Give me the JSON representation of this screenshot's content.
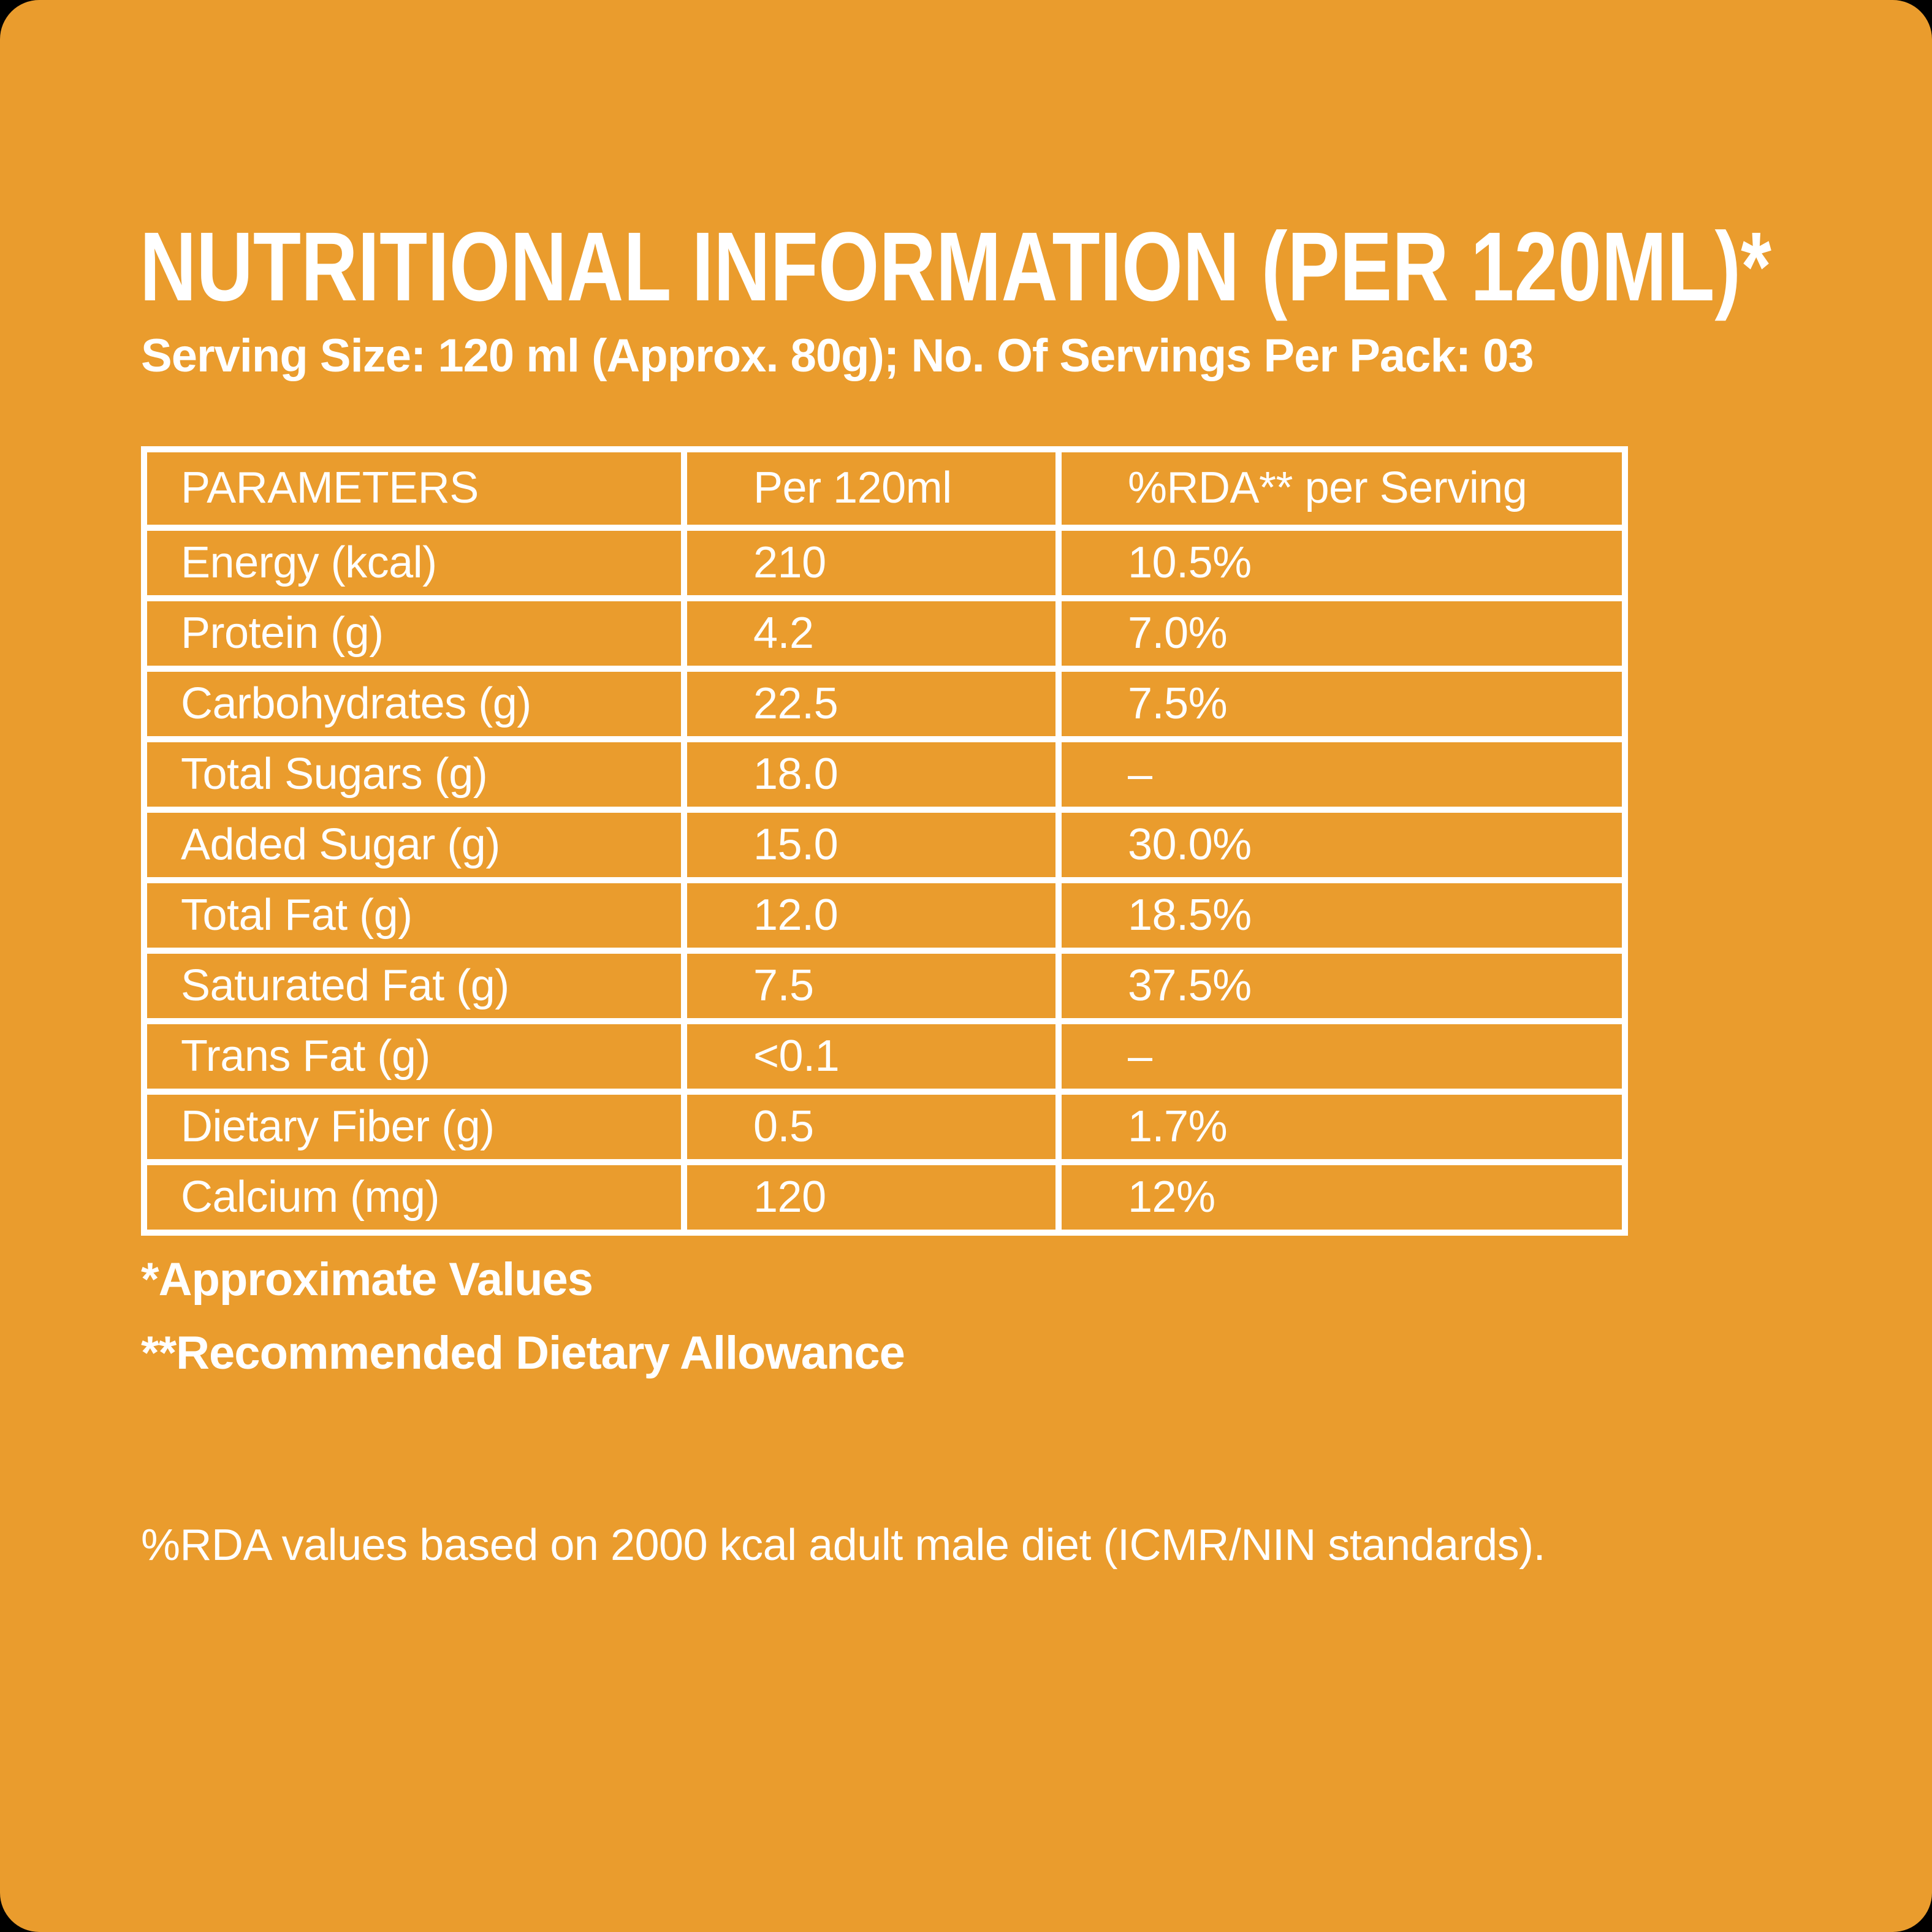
{
  "header": {
    "title": "NUTRITIONAL INFORMATION (PER 120ML)*",
    "serving_line": "Serving Size: 120 ml (Approx. 80g); No. Of Servings Per Pack: 03"
  },
  "table": {
    "headers": [
      "PARAMETERS",
      "Per 120ml",
      "%RDA** per Serving"
    ],
    "rows": [
      {
        "parameter": "Energy (kcal)",
        "per_120ml": "210",
        "rda_per_serving": "10.5%"
      },
      {
        "parameter": "Protein (g)",
        "per_120ml": "4.2",
        "rda_per_serving": "7.0%"
      },
      {
        "parameter": "Carbohydrates (g)",
        "per_120ml": "22.5",
        "rda_per_serving": "7.5%"
      },
      {
        "parameter": "Total Sugars (g)",
        "per_120ml": "18.0",
        "rda_per_serving": "–"
      },
      {
        "parameter": "Added Sugar (g)",
        "per_120ml": "15.0",
        "rda_per_serving": "30.0%"
      },
      {
        "parameter": "Total Fat (g)",
        "per_120ml": "12.0",
        "rda_per_serving": "18.5%"
      },
      {
        "parameter": "Saturated Fat (g)",
        "per_120ml": "7.5",
        "rda_per_serving": "37.5%"
      },
      {
        "parameter": "Trans Fat (g)",
        "per_120ml": "<0.1",
        "rda_per_serving": "–"
      },
      {
        "parameter": "Dietary Fiber (g)",
        "per_120ml": "0.5",
        "rda_per_serving": "1.7%"
      },
      {
        "parameter": "Calcium (mg)",
        "per_120ml": "120",
        "rda_per_serving": "12%"
      }
    ]
  },
  "footnotes": {
    "approximate_values": "*Approximate Values",
    "recommended_dietary_allowance": "**Recommended Dietary Allowance"
  },
  "bottom_note": "%RDA values based on 2000 kcal adult male diet (ICMR/NIN standards).",
  "colors": {
    "page_background": "#000000",
    "card_background": "#EA9C2D",
    "text": "#FFFFFF",
    "table_border": "#FFFFFF"
  }
}
